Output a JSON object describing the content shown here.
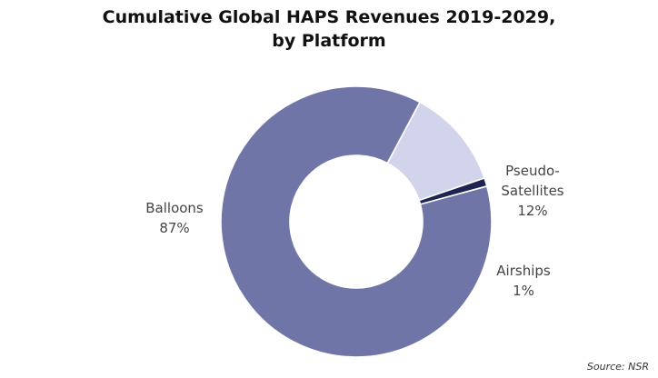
{
  "chart_data": {
    "type": "pie",
    "donut": true,
    "title_lines": [
      "Cumulative Global HAPS Revenues 2019-2029,",
      "by Platform"
    ],
    "slices": [
      {
        "label": "Pseudo-Satellites",
        "label_lines": [
          "Pseudo-",
          "Satellites"
        ],
        "value": 12,
        "value_label": "12%",
        "color": "#d2d4ec"
      },
      {
        "label": "Airships",
        "label_lines": [
          "Airships"
        ],
        "value": 1,
        "value_label": "1%",
        "color": "#1e2452"
      },
      {
        "label": "Balloons",
        "label_lines": [
          "Balloons"
        ],
        "value": 87,
        "value_label": "87%",
        "color": "#7075a7"
      }
    ],
    "legend": "none",
    "source": "Source: NSR"
  }
}
